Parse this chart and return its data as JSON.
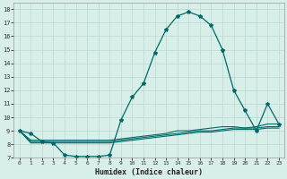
{
  "xlabel": "Humidex (Indice chaleur)",
  "background_color": "#d8eee8",
  "grid_color": "#b8d8d0",
  "line_color": "#006868",
  "xlim": [
    -0.5,
    23.5
  ],
  "ylim": [
    7,
    18.5
  ],
  "xticks": [
    0,
    1,
    2,
    3,
    4,
    5,
    6,
    7,
    8,
    9,
    10,
    11,
    12,
    13,
    14,
    15,
    16,
    17,
    18,
    19,
    20,
    21,
    22,
    23
  ],
  "yticks": [
    7,
    8,
    9,
    10,
    11,
    12,
    13,
    14,
    15,
    16,
    17,
    18
  ],
  "s1_x": [
    0,
    1,
    2,
    3,
    4,
    5,
    6,
    7,
    8,
    9,
    10,
    11,
    12,
    13,
    14,
    15,
    16,
    17,
    18,
    19,
    20,
    21,
    22,
    23
  ],
  "s1_y": [
    9,
    8.8,
    8.2,
    8.1,
    7.2,
    7.1,
    7.1,
    7.1,
    7.2,
    9.8,
    11.5,
    12.5,
    14.8,
    16.5,
    17.5,
    17.8,
    17.5,
    16.8,
    15.0,
    12.0,
    10.5,
    9.0,
    11.0,
    9.5
  ],
  "s2_x": [
    0,
    1,
    2,
    3,
    4,
    5,
    6,
    7,
    8,
    9,
    10,
    11,
    12,
    13,
    14,
    15,
    16,
    17,
    18,
    19,
    20,
    21,
    22,
    23
  ],
  "s2_y": [
    9.0,
    8.3,
    8.3,
    8.3,
    8.3,
    8.3,
    8.3,
    8.3,
    8.3,
    8.4,
    8.5,
    8.6,
    8.7,
    8.8,
    9.0,
    9.0,
    9.1,
    9.2,
    9.3,
    9.3,
    9.2,
    9.3,
    9.5,
    9.5
  ],
  "s3_x": [
    0,
    1,
    2,
    3,
    4,
    5,
    6,
    7,
    8,
    9,
    10,
    11,
    12,
    13,
    14,
    15,
    16,
    17,
    18,
    19,
    20,
    21,
    22,
    23
  ],
  "s3_y": [
    9.0,
    8.2,
    8.2,
    8.2,
    8.2,
    8.2,
    8.2,
    8.2,
    8.2,
    8.3,
    8.4,
    8.5,
    8.6,
    8.7,
    8.8,
    8.9,
    9.0,
    9.0,
    9.1,
    9.2,
    9.2,
    9.2,
    9.3,
    9.3
  ],
  "s4_x": [
    0,
    1,
    2,
    3,
    4,
    5,
    6,
    7,
    8,
    9,
    10,
    11,
    12,
    13,
    14,
    15,
    16,
    17,
    18,
    19,
    20,
    21,
    22,
    23
  ],
  "s4_y": [
    9.0,
    8.1,
    8.1,
    8.1,
    8.1,
    8.1,
    8.1,
    8.1,
    8.1,
    8.2,
    8.3,
    8.4,
    8.5,
    8.6,
    8.7,
    8.8,
    8.9,
    8.9,
    9.0,
    9.1,
    9.1,
    9.1,
    9.2,
    9.2
  ]
}
